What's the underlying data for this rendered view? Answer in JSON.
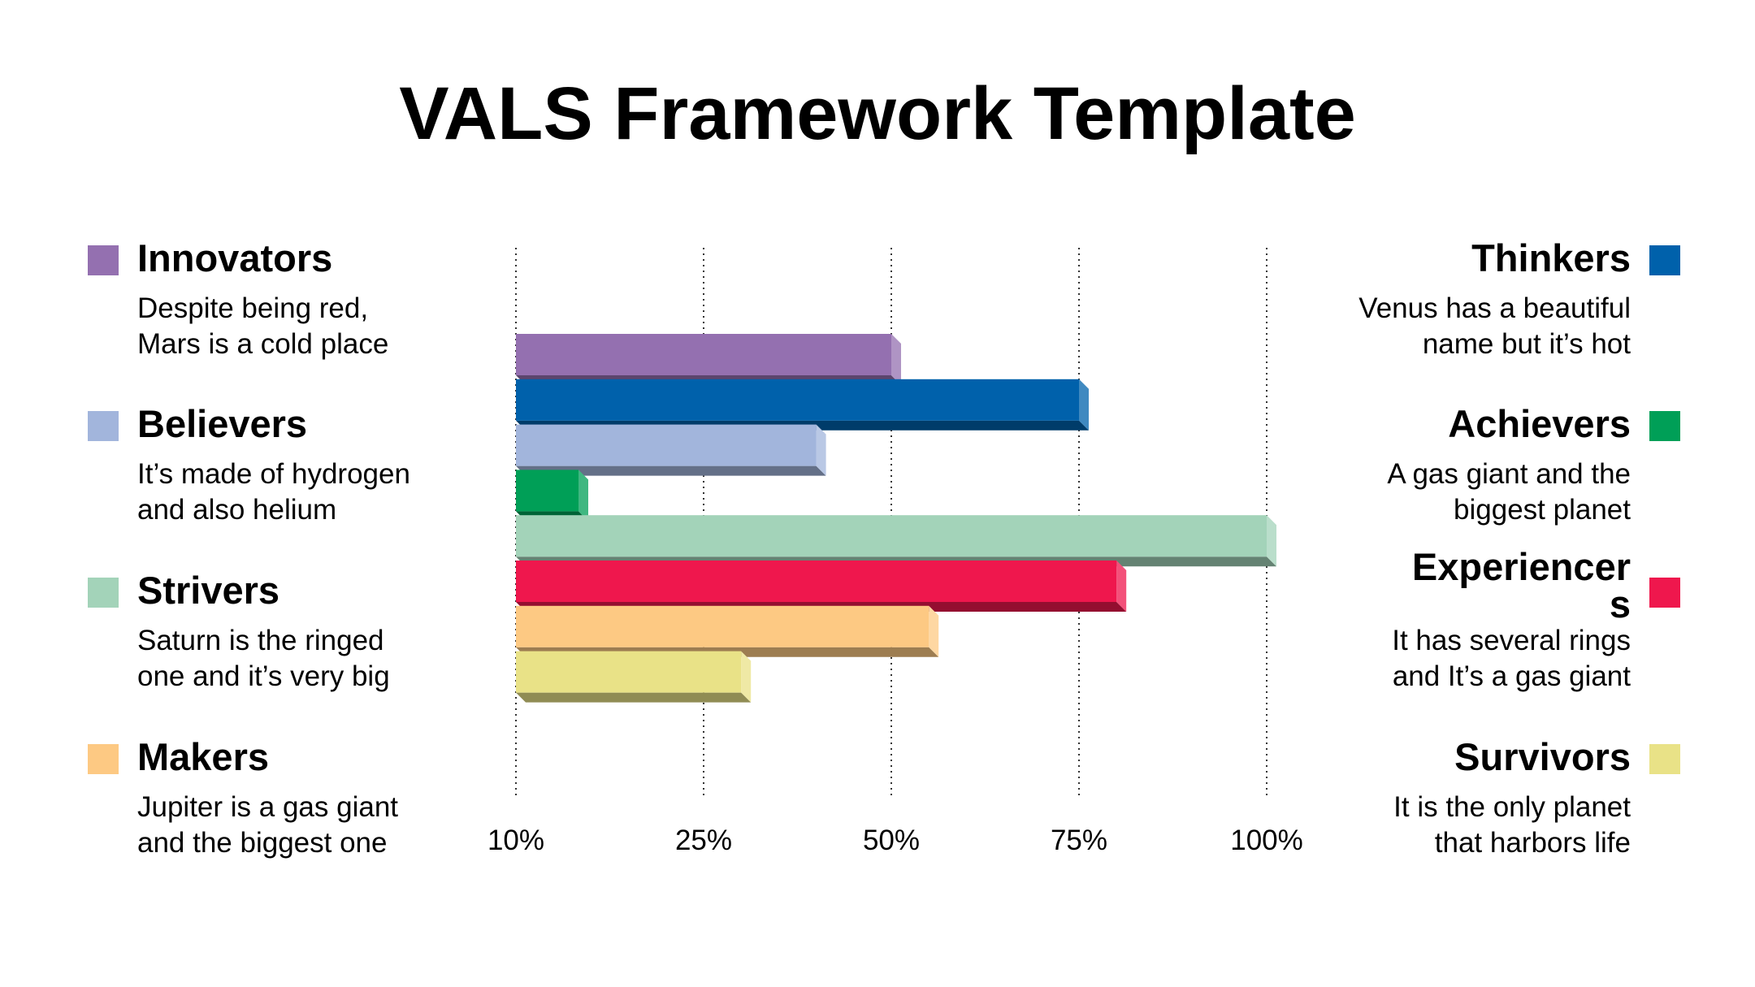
{
  "title": "VALS Framework Template",
  "legend": {
    "left": [
      {
        "name": "Innovators",
        "desc_line1": "Despite being red,",
        "desc_line2": "Mars is a cold place",
        "color": "#9470b0"
      },
      {
        "name": "Believers",
        "desc_line1": "It’s made of hydrogen",
        "desc_line2": "and also helium",
        "color": "#a2b5dc"
      },
      {
        "name": "Strivers",
        "desc_line1": "Saturn is the ringed",
        "desc_line2": "one and it’s very big",
        "color": "#a3d3b9"
      },
      {
        "name": "Makers",
        "desc_line1": "Jupiter is a gas giant",
        "desc_line2": "and the biggest one",
        "color": "#fdc983"
      }
    ],
    "right": [
      {
        "name": "Thinkers",
        "desc_line1": "Venus has a beautiful",
        "desc_line2": "name but it’s hot",
        "color": "#0061ab"
      },
      {
        "name": "Achievers",
        "desc_line1": "A gas giant and the",
        "desc_line2": "biggest planet",
        "color": "#009f57"
      },
      {
        "name": "Experiencers",
        "desc_line1": "It has several rings",
        "desc_line2": "and It’s a gas giant",
        "color": "#ef174d"
      },
      {
        "name": "Survivors",
        "desc_line1": "It is the only planet",
        "desc_line2": "that harbors life",
        "color": "#e9e287"
      }
    ]
  },
  "chart_data": {
    "type": "bar",
    "orientation": "horizontal",
    "title": "VALS Framework Template",
    "x_ticks": [
      "10%",
      "25%",
      "50%",
      "75%",
      "100%"
    ],
    "grid": "vertical dotted",
    "series": [
      {
        "name": "Innovators",
        "value": "50%",
        "color": "#9470b0"
      },
      {
        "name": "Thinkers",
        "value": "75%",
        "color": "#0061ab"
      },
      {
        "name": "Believers",
        "value": "40%",
        "color": "#a2b5dc"
      },
      {
        "name": "Achievers",
        "value": "15%",
        "color": "#009f57"
      },
      {
        "name": "Strivers",
        "value": "100%",
        "color": "#a3d3b9"
      },
      {
        "name": "Experiencers",
        "value": "80%",
        "color": "#ef174d"
      },
      {
        "name": "Makers",
        "value": "55%",
        "color": "#fdc983"
      },
      {
        "name": "Survivors",
        "value": "30%",
        "color": "#e9e287"
      }
    ]
  }
}
